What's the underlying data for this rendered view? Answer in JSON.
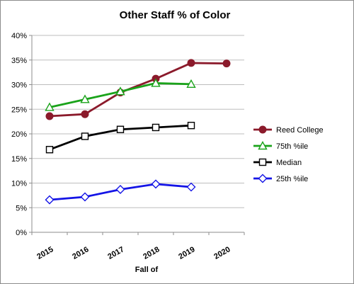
{
  "chart_data": {
    "type": "line",
    "title": "Other Staff % of Color",
    "xlabel": "Fall of",
    "ylabel": "",
    "categories": [
      "2015",
      "2016",
      "2017",
      "2018",
      "2019",
      "2020"
    ],
    "yticks": [
      "0%",
      "5%",
      "10%",
      "15%",
      "20%",
      "25%",
      "30%",
      "35%",
      "40%"
    ],
    "ylim": [
      0,
      40
    ],
    "grid": true,
    "legend_position": "right",
    "series": [
      {
        "name": "Reed College",
        "color": "#8b1a2b",
        "marker": "circle",
        "values": [
          23.6,
          24.0,
          28.4,
          31.2,
          34.4,
          34.3
        ]
      },
      {
        "name": "75th %ile",
        "color": "#1aa31a",
        "marker": "triangle",
        "values": [
          25.4,
          27.0,
          28.6,
          30.3,
          30.1,
          null
        ]
      },
      {
        "name": "Median",
        "color": "#000000",
        "marker": "square",
        "values": [
          16.8,
          19.5,
          20.9,
          21.3,
          21.7,
          null
        ]
      },
      {
        "name": "25th %ile",
        "color": "#1414e6",
        "marker": "diamond",
        "values": [
          6.6,
          7.2,
          8.7,
          9.8,
          9.2,
          null
        ]
      }
    ]
  }
}
